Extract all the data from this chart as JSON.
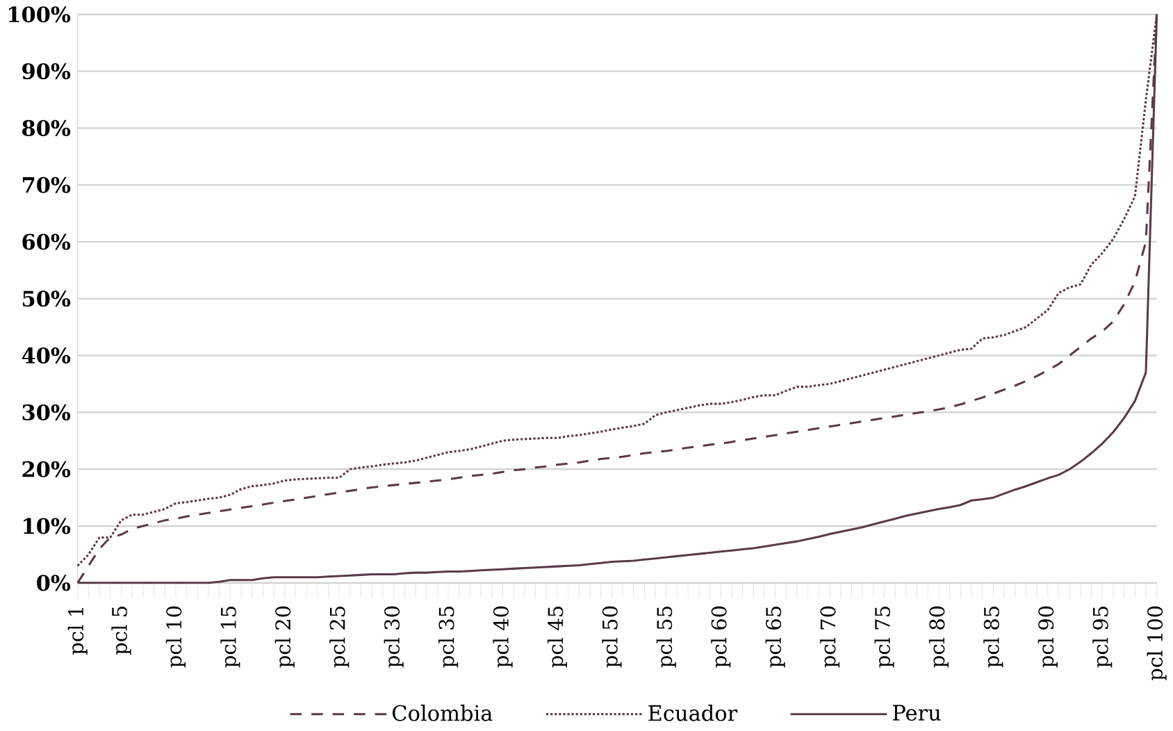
{
  "chart_data": {
    "type": "line",
    "categories": [
      "pcl 1",
      null,
      null,
      null,
      "pcl 5",
      null,
      null,
      null,
      null,
      "pcl 10",
      null,
      null,
      null,
      null,
      "pcl 15",
      null,
      null,
      null,
      null,
      "pcl 20",
      null,
      null,
      null,
      null,
      "pcl 25",
      null,
      null,
      null,
      null,
      "pcl 30",
      null,
      null,
      null,
      null,
      "pcl 35",
      null,
      null,
      null,
      null,
      "pcl 40",
      null,
      null,
      null,
      null,
      "pcl 45",
      null,
      null,
      null,
      null,
      "pcl 50",
      null,
      null,
      null,
      null,
      "pcl 55",
      null,
      null,
      null,
      null,
      "pcl 60",
      null,
      null,
      null,
      null,
      "pcl 65",
      null,
      null,
      null,
      null,
      "pcl 70",
      null,
      null,
      null,
      null,
      "pcl 75",
      null,
      null,
      null,
      null,
      "pcl 80",
      null,
      null,
      null,
      null,
      "pcl 85",
      null,
      null,
      null,
      null,
      "pcl 90",
      null,
      null,
      null,
      null,
      "pcl 95",
      null,
      null,
      null,
      null,
      "pcl 100"
    ],
    "series": [
      {
        "name": "Colombia",
        "color": "#5a3a4a",
        "line_style": "dashed",
        "values": [
          0,
          3,
          6,
          8,
          8.5,
          9.5,
          10,
          10.5,
          11,
          11.3,
          11.7,
          12,
          12.3,
          12.6,
          12.9,
          13.2,
          13.5,
          13.8,
          14.1,
          14.4,
          14.7,
          15,
          15.3,
          15.6,
          15.9,
          16.2,
          16.5,
          16.8,
          17,
          17.2,
          17.4,
          17.6,
          17.8,
          18,
          18.2,
          18.5,
          18.8,
          19,
          19.2,
          19.5,
          19.8,
          20,
          20.3,
          20.5,
          20.8,
          21,
          21.2,
          21.5,
          21.8,
          22,
          22.2,
          22.5,
          22.8,
          23,
          23.2,
          23.5,
          23.8,
          24,
          24.3,
          24.5,
          24.8,
          25.1,
          25.4,
          25.7,
          26,
          26.3,
          26.6,
          26.9,
          27.2,
          27.5,
          27.8,
          28.1,
          28.4,
          28.7,
          29,
          29.3,
          29.6,
          29.9,
          30.2,
          30.5,
          30.9,
          31.4,
          32,
          32.6,
          33.3,
          34,
          34.7,
          35.5,
          36.4,
          37.4,
          38.5,
          40,
          41.5,
          43,
          44.2,
          46,
          49,
          53,
          60,
          100
        ]
      },
      {
        "name": "Ecuador",
        "color": "#5a3a4a",
        "line_style": "dotted",
        "values": [
          3,
          5,
          8,
          8,
          11,
          12,
          12,
          12.5,
          13,
          14,
          14.2,
          14.5,
          14.8,
          15,
          15.5,
          16.5,
          17,
          17.2,
          17.5,
          18,
          18.2,
          18.3,
          18.4,
          18.5,
          18.5,
          20,
          20.3,
          20.5,
          20.8,
          21,
          21.2,
          21.5,
          22,
          22.5,
          23,
          23.2,
          23.5,
          24,
          24.5,
          25,
          25.2,
          25.3,
          25.4,
          25.5,
          25.5,
          25.8,
          26,
          26.3,
          26.6,
          27,
          27.3,
          27.6,
          28,
          29.5,
          30,
          30.4,
          30.8,
          31.2,
          31.5,
          31.5,
          31.8,
          32.2,
          32.7,
          33,
          33,
          33.8,
          34.5,
          34.5,
          34.8,
          35,
          35.5,
          36,
          36.5,
          37,
          37.5,
          38,
          38.5,
          39,
          39.5,
          40,
          40.5,
          41,
          41.2,
          43,
          43.2,
          43.6,
          44.3,
          45,
          46.5,
          48,
          51,
          52,
          52.5,
          56,
          58,
          60.5,
          64,
          68,
          85,
          100
        ]
      },
      {
        "name": "Peru",
        "color": "#5a3a4a",
        "line_style": "solid",
        "values": [
          0,
          0,
          0,
          0,
          0,
          0,
          0,
          0,
          0,
          0,
          0,
          0,
          0,
          0.2,
          0.5,
          0.5,
          0.5,
          0.8,
          1,
          1,
          1,
          1,
          1,
          1.1,
          1.2,
          1.3,
          1.4,
          1.5,
          1.5,
          1.5,
          1.7,
          1.8,
          1.8,
          1.9,
          2,
          2,
          2.1,
          2.2,
          2.3,
          2.4,
          2.5,
          2.6,
          2.7,
          2.8,
          2.9,
          3,
          3.1,
          3.3,
          3.5,
          3.7,
          3.8,
          3.9,
          4.1,
          4.3,
          4.5,
          4.7,
          4.9,
          5.1,
          5.3,
          5.5,
          5.7,
          5.9,
          6.1,
          6.4,
          6.7,
          7,
          7.3,
          7.7,
          8.1,
          8.6,
          9,
          9.4,
          9.8,
          10.3,
          10.8,
          11.3,
          11.8,
          12.2,
          12.6,
          13,
          13.3,
          13.7,
          14.5,
          14.7,
          15,
          15.7,
          16.4,
          17,
          17.7,
          18.4,
          19,
          20,
          21.3,
          22.8,
          24.5,
          26.5,
          29,
          32,
          37,
          100
        ]
      }
    ],
    "ylim": [
      0,
      100
    ],
    "yticks": [
      {
        "value": 0,
        "label": "0%"
      },
      {
        "value": 10,
        "label": "10%"
      },
      {
        "value": 20,
        "label": "20%"
      },
      {
        "value": 30,
        "label": "30%"
      },
      {
        "value": 40,
        "label": "40%"
      },
      {
        "value": 50,
        "label": "50%"
      },
      {
        "value": 60,
        "label": "60%"
      },
      {
        "value": 70,
        "label": "70%"
      },
      {
        "value": 80,
        "label": "80%"
      },
      {
        "value": 90,
        "label": "90%"
      },
      {
        "value": 100,
        "label": "100%"
      }
    ],
    "grid": "y",
    "legend": "bottom",
    "marker": "none"
  }
}
